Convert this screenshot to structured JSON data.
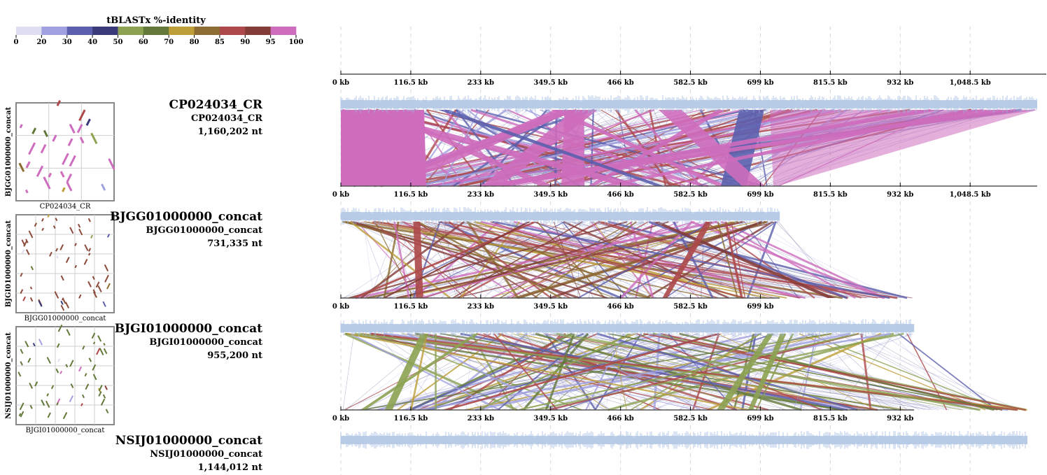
{
  "legend": {
    "title": "tBLASTx %-identity",
    "ticks": [
      "0",
      "20",
      "30",
      "40",
      "50",
      "60",
      "70",
      "80",
      "85",
      "90",
      "95",
      "100"
    ],
    "colors": [
      "#dedef2",
      "#a1a1e0",
      "#5b5fad",
      "#393b79",
      "#8ca252",
      "#637939",
      "#bd9e39",
      "#8c6d31",
      "#ad494a",
      "#843c39",
      "#ce6dbd"
    ]
  },
  "axis_labels": [
    "0 kb",
    "116.5 kb",
    "233 kb",
    "349.5 kb",
    "466 kb",
    "582.5 kb",
    "699 kb",
    "815.5 kb",
    "932 kb",
    "1,048.5 kb"
  ],
  "genomes": [
    {
      "title": "CP024034_CR",
      "name": "CP024034_CR",
      "length": "1,160,202 nt",
      "length_nt": 1160202
    },
    {
      "title": "BJGG01000000_concat",
      "name": "BJGG01000000_concat",
      "length": "731,335 nt",
      "length_nt": 731335
    },
    {
      "title": "BJGI01000000_concat",
      "name": "BJGI01000000_concat",
      "length": "955,200 nt",
      "length_nt": 955200
    },
    {
      "title": "NSIJ01000000_concat",
      "name": "NSIJ01000000_concat",
      "length": "1,144,012 nt",
      "length_nt": 1144012
    }
  ],
  "dotplots": [
    {
      "xlabel": "CP024034_CR",
      "ylabel": "BJGG01000000_concat",
      "color": "#ce6dbd"
    },
    {
      "xlabel": "BJGG01000000_concat",
      "ylabel": "BJGI01000000_concat",
      "color": "#8c4a3a"
    },
    {
      "xlabel": "BJGI01000000_concat",
      "ylabel": "NSIJ01000000_concat",
      "color": "#637939"
    }
  ],
  "comparisons": [
    {
      "dominant": "#ce6dbd",
      "secondary": [
        "#ce6dbd",
        "#ad494a",
        "#5b5fad",
        "#a1a1e0"
      ]
    },
    {
      "dominant": "#ad494a",
      "secondary": [
        "#ad494a",
        "#8c6d31",
        "#bd9e39",
        "#ce6dbd",
        "#843c39",
        "#5b5fad"
      ]
    },
    {
      "dominant": "#8ca252",
      "secondary": [
        "#8ca252",
        "#bd9e39",
        "#637939",
        "#a1a1e0",
        "#5b5fad",
        "#ad494a"
      ]
    }
  ]
}
